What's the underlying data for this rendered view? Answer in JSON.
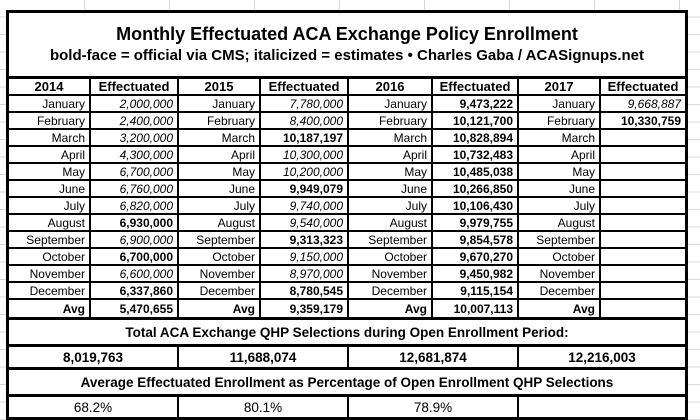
{
  "title": "Monthly Effectuated ACA Exchange Policy Enrollment",
  "subtitle": "bold-face = official via CMS; italicized = estimates  •  Charles Gaba / ACASignups.net",
  "avg_label": "Avg",
  "months": [
    "January",
    "February",
    "March",
    "April",
    "May",
    "June",
    "July",
    "August",
    "September",
    "October",
    "November",
    "December"
  ],
  "years": [
    {
      "year": "2014",
      "value_header": "Effectuated",
      "values": [
        {
          "v": "2,000,000",
          "s": "i"
        },
        {
          "v": "2,400,000",
          "s": "i"
        },
        {
          "v": "3,200,000",
          "s": "i"
        },
        {
          "v": "4,300,000",
          "s": "i"
        },
        {
          "v": "6,700,000",
          "s": "i"
        },
        {
          "v": "6,760,000",
          "s": "i"
        },
        {
          "v": "6,820,000",
          "s": "i"
        },
        {
          "v": "6,930,000",
          "s": "b"
        },
        {
          "v": "6,900,000",
          "s": "i"
        },
        {
          "v": "6,700,000",
          "s": "b"
        },
        {
          "v": "6,600,000",
          "s": "i"
        },
        {
          "v": "6,337,860",
          "s": "b"
        }
      ],
      "avg": {
        "v": "5,470,655",
        "s": "b"
      }
    },
    {
      "year": "2015",
      "value_header": "Effectuated",
      "values": [
        {
          "v": "7,780,000",
          "s": "i"
        },
        {
          "v": "8,400,000",
          "s": "i"
        },
        {
          "v": "10,187,197",
          "s": "b"
        },
        {
          "v": "10,300,000",
          "s": "i"
        },
        {
          "v": "10,200,000",
          "s": "i"
        },
        {
          "v": "9,949,079",
          "s": "b"
        },
        {
          "v": "9,740,000",
          "s": "i"
        },
        {
          "v": "9,540,000",
          "s": "i"
        },
        {
          "v": "9,313,323",
          "s": "b"
        },
        {
          "v": "9,150,000",
          "s": "i"
        },
        {
          "v": "8,970,000",
          "s": "i"
        },
        {
          "v": "8,780,545",
          "s": "b"
        }
      ],
      "avg": {
        "v": "9,359,179",
        "s": "b"
      }
    },
    {
      "year": "2016",
      "value_header": "Effectuated",
      "values": [
        {
          "v": "9,473,222",
          "s": "b"
        },
        {
          "v": "10,121,700",
          "s": "b"
        },
        {
          "v": "10,828,894",
          "s": "b"
        },
        {
          "v": "10,732,483",
          "s": "b"
        },
        {
          "v": "10,485,038",
          "s": "b"
        },
        {
          "v": "10,266,850",
          "s": "b"
        },
        {
          "v": "10,106,430",
          "s": "b"
        },
        {
          "v": "9,979,755",
          "s": "b"
        },
        {
          "v": "9,854,578",
          "s": "b"
        },
        {
          "v": "9,670,270",
          "s": "b"
        },
        {
          "v": "9,450,982",
          "s": "b"
        },
        {
          "v": "9,115,154",
          "s": "b"
        }
      ],
      "avg": {
        "v": "10,007,113",
        "s": "b"
      }
    },
    {
      "year": "2017",
      "value_header": "Effectuated",
      "values": [
        {
          "v": "9,668,887",
          "s": "i"
        },
        {
          "v": "10,330,759",
          "s": "b"
        },
        {
          "v": "",
          "s": ""
        },
        {
          "v": "",
          "s": ""
        },
        {
          "v": "",
          "s": ""
        },
        {
          "v": "",
          "s": ""
        },
        {
          "v": "",
          "s": ""
        },
        {
          "v": "",
          "s": ""
        },
        {
          "v": "",
          "s": ""
        },
        {
          "v": "",
          "s": ""
        },
        {
          "v": "",
          "s": ""
        },
        {
          "v": "",
          "s": ""
        }
      ],
      "avg": {
        "v": "",
        "s": "b"
      }
    }
  ],
  "totals": {
    "header": "Total ACA Exchange QHP Selections during Open Enrollment Period:",
    "values": [
      "8,019,763",
      "11,688,074",
      "12,681,874",
      "12,216,003"
    ]
  },
  "percentages": {
    "header": "Average Effectuated Enrollment as Percentage of Open Enrollment QHP Selections",
    "values": [
      "68.2%",
      "80.1%",
      "78.9%",
      ""
    ]
  }
}
